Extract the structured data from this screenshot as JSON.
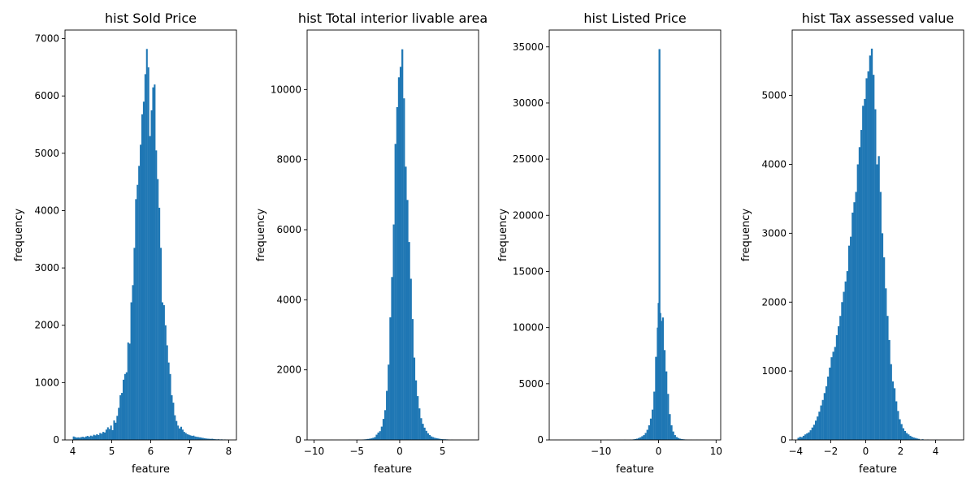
{
  "chart_data": [
    {
      "type": "bar",
      "title": "hist Sold Price",
      "xlabel": "feature",
      "ylabel": "frequency",
      "xlim": [
        3.8,
        8.2
      ],
      "ylim": [
        0,
        7150
      ],
      "xticks": [
        4,
        5,
        6,
        7,
        8
      ],
      "xtick_labels": [
        "4",
        "5",
        "6",
        "7",
        "8"
      ],
      "yticks": [
        0,
        1000,
        2000,
        3000,
        4000,
        5000,
        6000,
        7000
      ],
      "ytick_labels": [
        "0",
        "1000",
        "2000",
        "3000",
        "4000",
        "5000",
        "6000",
        "7000"
      ],
      "color": "#1f77b4",
      "bin_width": 0.04,
      "bins": [
        [
          4.0,
          60
        ],
        [
          4.04,
          50
        ],
        [
          4.08,
          40
        ],
        [
          4.12,
          45
        ],
        [
          4.16,
          40
        ],
        [
          4.2,
          50
        ],
        [
          4.24,
          55
        ],
        [
          4.28,
          45
        ],
        [
          4.32,
          60
        ],
        [
          4.36,
          70
        ],
        [
          4.4,
          55
        ],
        [
          4.44,
          75
        ],
        [
          4.48,
          65
        ],
        [
          4.52,
          90
        ],
        [
          4.56,
          80
        ],
        [
          4.6,
          100
        ],
        [
          4.64,
          85
        ],
        [
          4.68,
          120
        ],
        [
          4.72,
          110
        ],
        [
          4.76,
          140
        ],
        [
          4.8,
          130
        ],
        [
          4.84,
          180
        ],
        [
          4.88,
          220
        ],
        [
          4.92,
          190
        ],
        [
          4.96,
          250
        ],
        [
          5.0,
          170
        ],
        [
          5.04,
          340
        ],
        [
          5.08,
          300
        ],
        [
          5.12,
          420
        ],
        [
          5.16,
          560
        ],
        [
          5.2,
          780
        ],
        [
          5.24,
          820
        ],
        [
          5.28,
          1050
        ],
        [
          5.32,
          1150
        ],
        [
          5.36,
          1180
        ],
        [
          5.4,
          1700
        ],
        [
          5.44,
          1680
        ],
        [
          5.48,
          2400
        ],
        [
          5.52,
          2700
        ],
        [
          5.56,
          3350
        ],
        [
          5.6,
          4200
        ],
        [
          5.64,
          4450
        ],
        [
          5.68,
          4780
        ],
        [
          5.72,
          5150
        ],
        [
          5.76,
          5680
        ],
        [
          5.8,
          5900
        ],
        [
          5.84,
          6380
        ],
        [
          5.88,
          6820
        ],
        [
          5.92,
          6500
        ],
        [
          5.96,
          5300
        ],
        [
          6.0,
          5750
        ],
        [
          6.04,
          6150
        ],
        [
          6.08,
          6200
        ],
        [
          6.12,
          5050
        ],
        [
          6.16,
          4550
        ],
        [
          6.2,
          4050
        ],
        [
          6.24,
          3350
        ],
        [
          6.28,
          2400
        ],
        [
          6.32,
          2350
        ],
        [
          6.36,
          2000
        ],
        [
          6.4,
          1650
        ],
        [
          6.44,
          1350
        ],
        [
          6.48,
          1150
        ],
        [
          6.52,
          780
        ],
        [
          6.56,
          650
        ],
        [
          6.6,
          430
        ],
        [
          6.64,
          330
        ],
        [
          6.68,
          250
        ],
        [
          6.72,
          200
        ],
        [
          6.76,
          230
        ],
        [
          6.8,
          180
        ],
        [
          6.84,
          140
        ],
        [
          6.88,
          120
        ],
        [
          6.92,
          100
        ],
        [
          6.96,
          90
        ],
        [
          7.0,
          80
        ],
        [
          7.04,
          70
        ],
        [
          7.08,
          75
        ],
        [
          7.12,
          60
        ],
        [
          7.16,
          55
        ],
        [
          7.2,
          50
        ],
        [
          7.24,
          45
        ],
        [
          7.28,
          40
        ],
        [
          7.32,
          35
        ],
        [
          7.36,
          30
        ],
        [
          7.4,
          25
        ],
        [
          7.44,
          22
        ],
        [
          7.48,
          20
        ],
        [
          7.52,
          18
        ],
        [
          7.56,
          20
        ],
        [
          7.6,
          15
        ],
        [
          7.64,
          12
        ],
        [
          7.68,
          10
        ],
        [
          7.72,
          12
        ],
        [
          7.76,
          8
        ],
        [
          7.8,
          10
        ],
        [
          7.84,
          6
        ],
        [
          7.88,
          8
        ],
        [
          7.92,
          5
        ],
        [
          7.96,
          4
        ]
      ]
    },
    {
      "type": "bar",
      "title": "hist Total interior livable area",
      "xlabel": "feature",
      "ylabel": "frequency",
      "xlim": [
        -10.8,
        9.2
      ],
      "ylim": [
        0,
        11700
      ],
      "xticks": [
        -10,
        -5,
        0,
        5
      ],
      "xtick_labels": [
        "−10",
        "−5",
        "0",
        "5"
      ],
      "yticks": [
        0,
        2000,
        4000,
        6000,
        8000,
        10000
      ],
      "ytick_labels": [
        "0",
        "2000",
        "4000",
        "6000",
        "8000",
        "10000"
      ],
      "color": "#1f77b4",
      "bin_width": 0.2,
      "bins": [
        [
          -10.0,
          3
        ],
        [
          -8.0,
          3
        ],
        [
          -6.0,
          6
        ],
        [
          -5.0,
          8
        ],
        [
          -4.4,
          12
        ],
        [
          -4.2,
          15
        ],
        [
          -4.0,
          20
        ],
        [
          -3.8,
          28
        ],
        [
          -3.6,
          35
        ],
        [
          -3.4,
          45
        ],
        [
          -3.2,
          60
        ],
        [
          -3.0,
          80
        ],
        [
          -2.8,
          150
        ],
        [
          -2.6,
          210
        ],
        [
          -2.4,
          250
        ],
        [
          -2.2,
          380
        ],
        [
          -2.0,
          600
        ],
        [
          -1.8,
          850
        ],
        [
          -1.6,
          1400
        ],
        [
          -1.4,
          2150
        ],
        [
          -1.2,
          3500
        ],
        [
          -1.0,
          4650
        ],
        [
          -0.8,
          6150
        ],
        [
          -0.6,
          8450
        ],
        [
          -0.4,
          9500
        ],
        [
          -0.2,
          10350
        ],
        [
          0.0,
          10650
        ],
        [
          0.2,
          11150
        ],
        [
          0.4,
          9750
        ],
        [
          0.6,
          7800
        ],
        [
          0.8,
          6850
        ],
        [
          1.0,
          5650
        ],
        [
          1.2,
          4600
        ],
        [
          1.4,
          3450
        ],
        [
          1.6,
          2350
        ],
        [
          1.8,
          1700
        ],
        [
          2.0,
          1250
        ],
        [
          2.2,
          900
        ],
        [
          2.4,
          620
        ],
        [
          2.6,
          460
        ],
        [
          2.8,
          350
        ],
        [
          3.0,
          260
        ],
        [
          3.2,
          190
        ],
        [
          3.4,
          140
        ],
        [
          3.6,
          100
        ],
        [
          3.8,
          80
        ],
        [
          4.0,
          60
        ],
        [
          4.2,
          50
        ],
        [
          4.4,
          40
        ],
        [
          4.6,
          30
        ],
        [
          4.8,
          25
        ],
        [
          5.0,
          20
        ],
        [
          5.2,
          18
        ],
        [
          5.4,
          15
        ],
        [
          5.6,
          12
        ],
        [
          6.0,
          8
        ],
        [
          7.0,
          4
        ],
        [
          8.0,
          2
        ]
      ]
    },
    {
      "type": "bar",
      "title": "hist Listed Price",
      "xlabel": "feature",
      "ylabel": "frequency",
      "xlim": [
        -19.0,
        10.8
      ],
      "ylim": [
        0,
        36500
      ],
      "xticks": [
        -10,
        0,
        10
      ],
      "xtick_labels": [
        "−10",
        "0",
        "10"
      ],
      "yticks": [
        0,
        5000,
        10000,
        15000,
        20000,
        25000,
        30000,
        35000
      ],
      "ytick_labels": [
        "0",
        "5000",
        "10000",
        "15000",
        "20000",
        "25000",
        "30000",
        "35000"
      ],
      "color": "#1f77b4",
      "bin_width": 0.3,
      "bins": [
        [
          -18.0,
          5
        ],
        [
          -15.0,
          5
        ],
        [
          -12.0,
          8
        ],
        [
          -9.0,
          10
        ],
        [
          -7.0,
          15
        ],
        [
          -6.0,
          20
        ],
        [
          -5.0,
          30
        ],
        [
          -4.5,
          50
        ],
        [
          -4.2,
          80
        ],
        [
          -3.9,
          110
        ],
        [
          -3.6,
          170
        ],
        [
          -3.3,
          240
        ],
        [
          -3.0,
          330
        ],
        [
          -2.7,
          430
        ],
        [
          -2.4,
          620
        ],
        [
          -2.1,
          900
        ],
        [
          -1.8,
          1300
        ],
        [
          -1.5,
          1900
        ],
        [
          -1.2,
          2700
        ],
        [
          -0.9,
          4300
        ],
        [
          -0.6,
          7400
        ],
        [
          -0.3,
          10000
        ],
        [
          -0.15,
          12200
        ],
        [
          0.0,
          34800
        ],
        [
          0.15,
          11300
        ],
        [
          0.3,
          10600
        ],
        [
          0.6,
          10900
        ],
        [
          0.9,
          8000
        ],
        [
          1.2,
          6100
        ],
        [
          1.5,
          4100
        ],
        [
          1.8,
          2300
        ],
        [
          2.1,
          1300
        ],
        [
          2.4,
          750
        ],
        [
          2.7,
          430
        ],
        [
          3.0,
          260
        ],
        [
          3.3,
          170
        ],
        [
          3.6,
          110
        ],
        [
          3.9,
          75
        ],
        [
          4.2,
          55
        ],
        [
          4.5,
          40
        ],
        [
          4.8,
          30
        ],
        [
          5.1,
          22
        ],
        [
          5.5,
          15
        ],
        [
          6.5,
          10
        ],
        [
          8.0,
          5
        ],
        [
          9.5,
          3
        ]
      ]
    },
    {
      "type": "bar",
      "title": "hist Tax assessed value",
      "xlabel": "feature",
      "ylabel": "frequency",
      "xlim": [
        -4.2,
        5.6
      ],
      "ylim": [
        0,
        5950
      ],
      "xticks": [
        -4,
        -2,
        0,
        2,
        4
      ],
      "xtick_labels": [
        "−4",
        "−2",
        "0",
        "2",
        "4"
      ],
      "yticks": [
        0,
        1000,
        2000,
        3000,
        4000,
        5000
      ],
      "ytick_labels": [
        "0",
        "1000",
        "2000",
        "3000",
        "4000",
        "5000"
      ],
      "color": "#1f77b4",
      "bin_width": 0.1,
      "bins": [
        [
          -3.9,
          30
        ],
        [
          -3.8,
          45
        ],
        [
          -3.7,
          40
        ],
        [
          -3.6,
          60
        ],
        [
          -3.5,
          80
        ],
        [
          -3.4,
          95
        ],
        [
          -3.3,
          110
        ],
        [
          -3.2,
          140
        ],
        [
          -3.1,
          180
        ],
        [
          -3.0,
          220
        ],
        [
          -2.9,
          280
        ],
        [
          -2.8,
          340
        ],
        [
          -2.7,
          410
        ],
        [
          -2.6,
          500
        ],
        [
          -2.5,
          580
        ],
        [
          -2.4,
          680
        ],
        [
          -2.3,
          780
        ],
        [
          -2.2,
          920
        ],
        [
          -2.1,
          1050
        ],
        [
          -2.0,
          1200
        ],
        [
          -1.9,
          1280
        ],
        [
          -1.8,
          1350
        ],
        [
          -1.7,
          1520
        ],
        [
          -1.6,
          1650
        ],
        [
          -1.5,
          1800
        ],
        [
          -1.4,
          2000
        ],
        [
          -1.3,
          2150
        ],
        [
          -1.2,
          2300
        ],
        [
          -1.1,
          2450
        ],
        [
          -1.0,
          2820
        ],
        [
          -0.9,
          2950
        ],
        [
          -0.8,
          3300
        ],
        [
          -0.7,
          3450
        ],
        [
          -0.6,
          3600
        ],
        [
          -0.5,
          4000
        ],
        [
          -0.4,
          4250
        ],
        [
          -0.3,
          4500
        ],
        [
          -0.2,
          4850
        ],
        [
          -0.1,
          4950
        ],
        [
          0.0,
          5250
        ],
        [
          0.1,
          5350
        ],
        [
          0.2,
          5580
        ],
        [
          0.3,
          5680
        ],
        [
          0.4,
          5300
        ],
        [
          0.5,
          4800
        ],
        [
          0.6,
          4000
        ],
        [
          0.7,
          4120
        ],
        [
          0.8,
          3600
        ],
        [
          0.9,
          3000
        ],
        [
          1.0,
          2650
        ],
        [
          1.1,
          2200
        ],
        [
          1.2,
          1800
        ],
        [
          1.3,
          1450
        ],
        [
          1.4,
          1100
        ],
        [
          1.5,
          850
        ],
        [
          1.6,
          750
        ],
        [
          1.7,
          560
        ],
        [
          1.8,
          420
        ],
        [
          1.9,
          300
        ],
        [
          2.0,
          230
        ],
        [
          2.1,
          170
        ],
        [
          2.2,
          130
        ],
        [
          2.3,
          100
        ],
        [
          2.4,
          80
        ],
        [
          2.5,
          60
        ],
        [
          2.6,
          45
        ],
        [
          2.7,
          35
        ],
        [
          2.8,
          28
        ],
        [
          2.9,
          20
        ],
        [
          3.0,
          15
        ],
        [
          3.2,
          10
        ],
        [
          3.5,
          6
        ],
        [
          4.0,
          4
        ],
        [
          4.8,
          2
        ]
      ]
    }
  ]
}
